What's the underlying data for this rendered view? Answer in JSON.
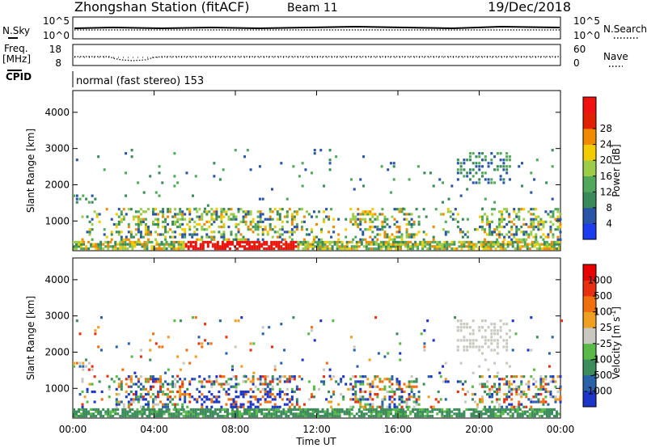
{
  "header": {
    "station": "Zhongshan Station (fitACF)",
    "beam": "Beam 11",
    "date": "19/Dec/2018",
    "program": "normal (fast stereo) 153"
  },
  "top_panels": {
    "nsky_label": "N.Sky",
    "nsearch_label": "N.Search",
    "freq_label": "Freq.",
    "freq_unit": "[MHz]",
    "nave_label": "Nave",
    "cpid_label": "CPID",
    "nsky_ticks": [
      "10^5",
      "10^0"
    ],
    "nsearch_ticks": [
      "10^5",
      "10^0"
    ],
    "freq_ticks": [
      "18",
      "8"
    ],
    "nave_ticks": [
      "60",
      "0"
    ]
  },
  "chart_data": [
    {
      "type": "heatmap",
      "name": "power",
      "ylabel": "Slant Range [km]",
      "xlabel": "",
      "xticks": [
        "00:00",
        "04:00",
        "08:00",
        "12:00",
        "16:00",
        "20:00",
        "00:00"
      ],
      "yticks": [
        1000,
        2000,
        3000,
        4000
      ],
      "ylim": [
        180,
        4600
      ],
      "xlim_hours": [
        0,
        24
      ],
      "colorbar": {
        "label": "Power [dB]",
        "ticks": [
          "4",
          "8",
          "12",
          "16",
          "20",
          "24",
          "28"
        ],
        "colors": [
          "#1c3cf0",
          "#2a55a6",
          "#3a8a5a",
          "#52a85a",
          "#9ccc48",
          "#f2cc00",
          "#f08a00",
          "#e02000",
          "#f01010"
        ]
      }
    },
    {
      "type": "heatmap",
      "name": "velocity",
      "ylabel": "Slant Range [km]",
      "xlabel": "Time UT",
      "xticks": [
        "00:00",
        "04:00",
        "08:00",
        "12:00",
        "16:00",
        "20:00",
        "00:00"
      ],
      "yticks": [
        1000,
        2000,
        3000,
        4000
      ],
      "ylim": [
        180,
        4600
      ],
      "xlim_hours": [
        0,
        24
      ],
      "colorbar": {
        "label": "Velocity [m s",
        "label_sup": "-1",
        "label_end": "]",
        "ticks": [
          "1000",
          "500",
          "100",
          "25",
          "-25",
          "-100",
          "-500",
          "-1000"
        ],
        "colors": [
          "#1c36c8",
          "#2a62a8",
          "#3c8c5c",
          "#5aba48",
          "#c8c8c0",
          "#f0a020",
          "#f07010",
          "#e83010",
          "#e80000"
        ]
      }
    }
  ]
}
